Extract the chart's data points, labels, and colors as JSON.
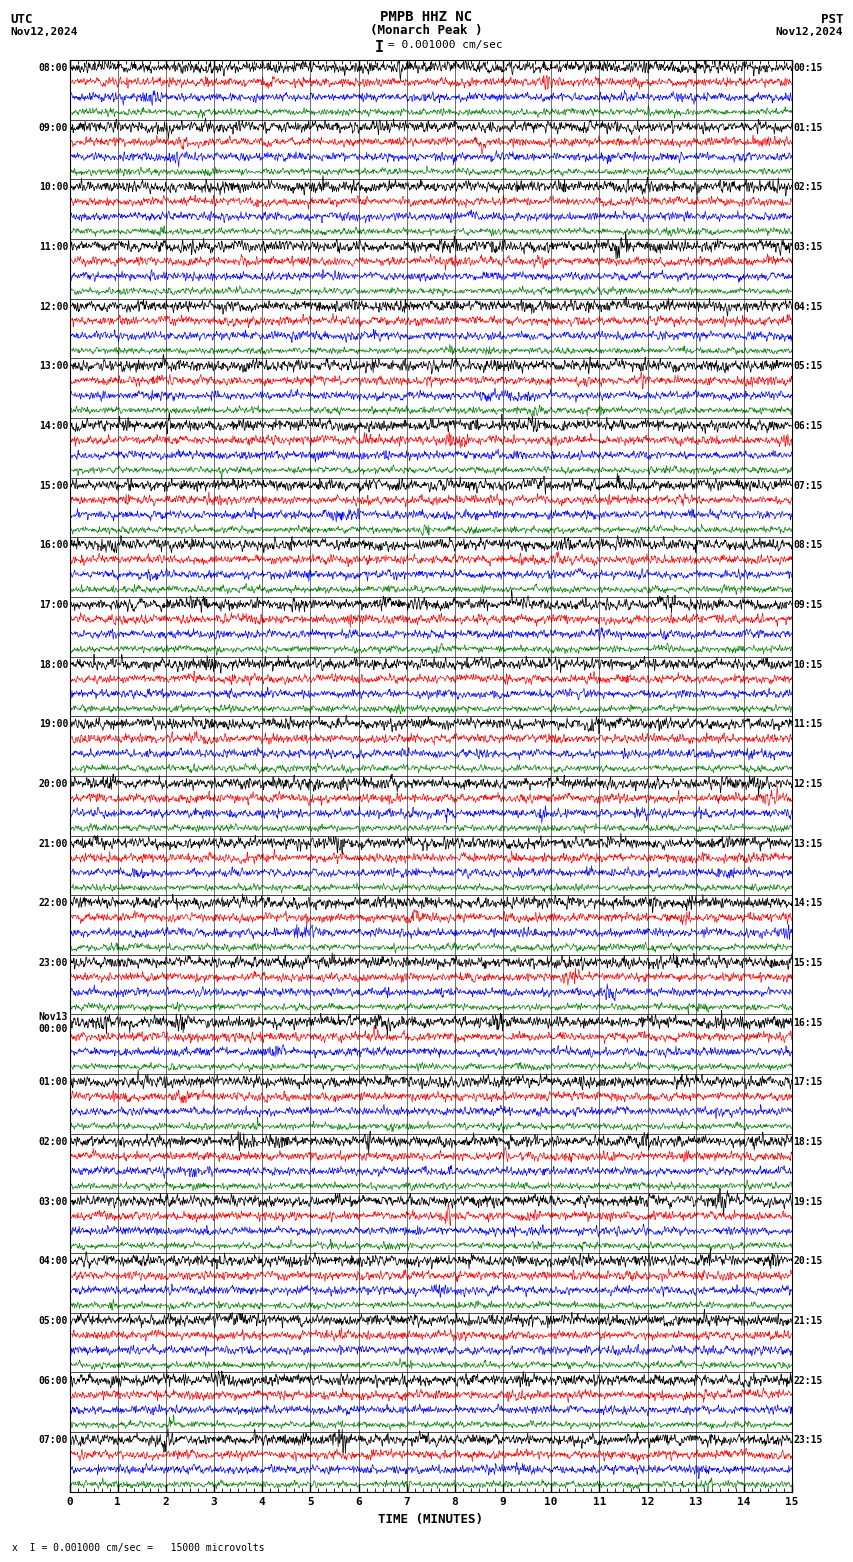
{
  "title_line1": "PMPB HHZ NC",
  "title_line2": "(Monarch Peak )",
  "scale_label": "= 0.001000 cm/sec",
  "left_header": "UTC",
  "left_date": "Nov12,2024",
  "right_header": "PST",
  "right_date": "Nov12,2024",
  "xlabel": "TIME (MINUTES)",
  "bottom_note": "= 0.001000 cm/sec =   15000 microvolts",
  "xmin": 0,
  "xmax": 15,
  "colors": [
    "black",
    "red",
    "blue",
    "green"
  ],
  "n_hours": 24,
  "n_traces_per_hour": 4,
  "utc_hour_labels": [
    "08:00",
    "09:00",
    "10:00",
    "11:00",
    "12:00",
    "13:00",
    "14:00",
    "15:00",
    "16:00",
    "17:00",
    "18:00",
    "19:00",
    "20:00",
    "21:00",
    "22:00",
    "23:00",
    "00:00",
    "01:00",
    "02:00",
    "03:00",
    "04:00",
    "05:00",
    "06:00",
    "07:00"
  ],
  "nov13_group": 16,
  "pst_hour_labels": [
    "00:15",
    "01:15",
    "02:15",
    "03:15",
    "04:15",
    "05:15",
    "06:15",
    "07:15",
    "08:15",
    "09:15",
    "10:15",
    "11:15",
    "12:15",
    "13:15",
    "14:15",
    "15:15",
    "16:15",
    "17:15",
    "18:15",
    "19:15",
    "20:15",
    "21:15",
    "22:15",
    "23:15"
  ],
  "fig_width": 8.5,
  "fig_height": 15.84,
  "bg_color": "white",
  "font_family": "monospace",
  "amp_black": 0.38,
  "amp_red": 0.3,
  "amp_blue": 0.28,
  "amp_green": 0.22,
  "lw_black": 0.5,
  "lw_colored": 0.45,
  "vgrid_lw": 0.4,
  "hgrid_lw": 0.5,
  "N_points": 1800
}
